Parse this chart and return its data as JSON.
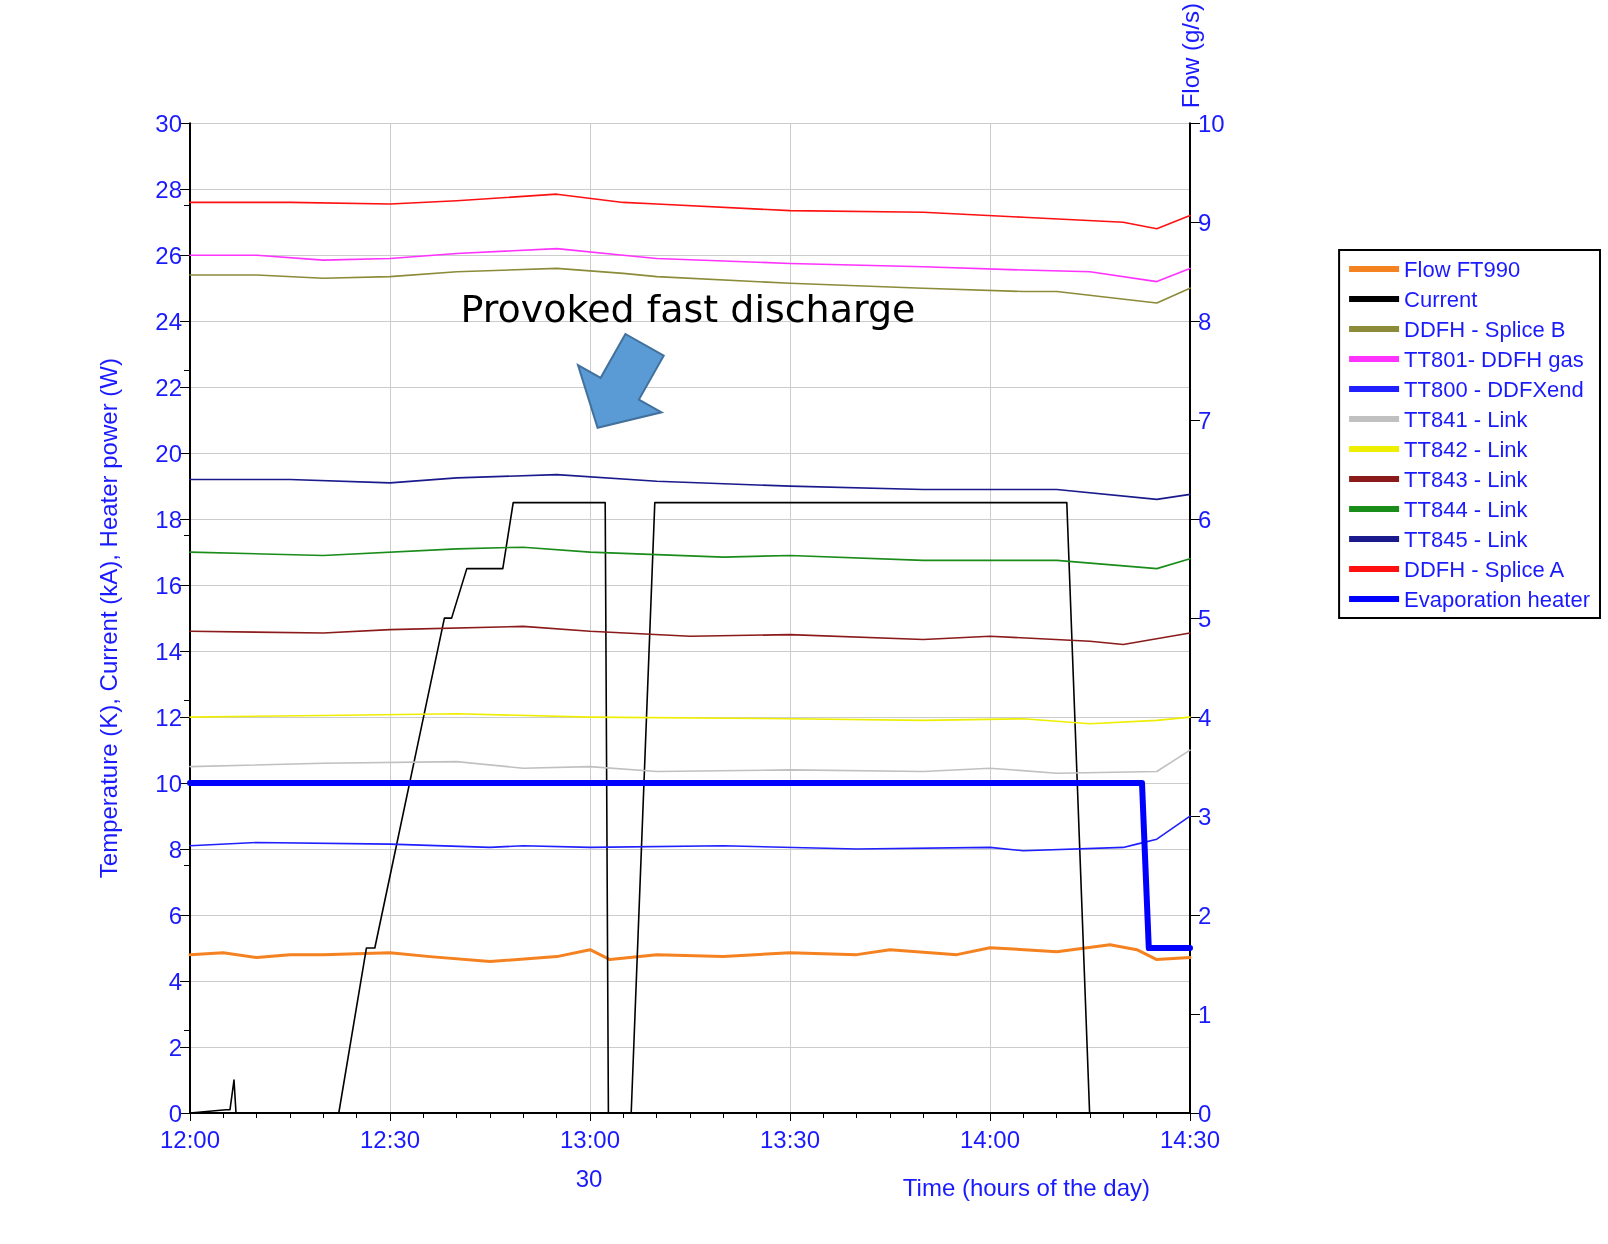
{
  "chart_data": {
    "type": "line",
    "ylabel": "Temperature (K), Current (kA), Heater power (W)",
    "y2label": "Flow (g/s)",
    "xlabel": "Time (hours of the day)",
    "annotations": [
      "Provoked fast discharge",
      "30"
    ],
    "xlim": [
      12,
      14.5
    ],
    "xticks": [
      {
        "value": 12,
        "label": "12:00"
      },
      {
        "value": 12.5,
        "label": "12:30"
      },
      {
        "value": 13,
        "label": "13:00"
      },
      {
        "value": 13.5,
        "label": "13:30"
      },
      {
        "value": 14,
        "label": "14:00"
      },
      {
        "value": 14.5,
        "label": "14:30"
      }
    ],
    "ylim": [
      0,
      30
    ],
    "yticks": [
      0,
      2,
      4,
      6,
      8,
      10,
      12,
      14,
      16,
      18,
      20,
      22,
      24,
      26,
      28,
      30
    ],
    "y2lim": [
      0,
      10
    ],
    "y2ticks": [
      0,
      1,
      2,
      3,
      4,
      5,
      6,
      7,
      8,
      9,
      10
    ],
    "grid": true,
    "legend": "right",
    "marker": "none",
    "line_style": "solid",
    "series": [
      {
        "name": "Flow FT990",
        "color": "#f58220",
        "axis": "y2",
        "x": [
          12,
          12.083,
          12.167,
          12.25,
          12.333,
          12.5,
          12.6,
          12.75,
          12.917,
          13,
          13.05,
          13.167,
          13.333,
          13.5,
          13.667,
          13.75,
          13.917,
          14,
          14.167,
          14.3,
          14.367,
          14.417,
          14.5
        ],
        "values": [
          1.6,
          1.62,
          1.57,
          1.6,
          1.6,
          1.62,
          1.58,
          1.53,
          1.58,
          1.65,
          1.55,
          1.6,
          1.58,
          1.62,
          1.6,
          1.65,
          1.6,
          1.67,
          1.63,
          1.7,
          1.65,
          1.55,
          1.57
        ]
      },
      {
        "name": "Current",
        "color": "#000000",
        "x": [
          12,
          12.09,
          12.1,
          12.11,
          12.115,
          12.372,
          12.441,
          12.462,
          12.636,
          12.654,
          12.692,
          12.782,
          12.808,
          13.038,
          13.046,
          13.103,
          13.162,
          14.192,
          14.249,
          14.333
        ],
        "values": [
          0,
          0.1,
          0.1,
          1,
          0,
          0,
          5,
          5,
          15,
          15,
          16.5,
          16.5,
          18.5,
          18.5,
          0,
          0,
          18.5,
          18.5,
          0,
          0
        ]
      },
      {
        "name": "DDFH - Splice B",
        "color": "#8b8b3a",
        "x": [
          12,
          12.167,
          12.333,
          12.5,
          12.667,
          12.917,
          13.083,
          13.167,
          13.5,
          13.833,
          14.083,
          14.167,
          14.417,
          14.5
        ],
        "values": [
          25.4,
          25.4,
          25.3,
          25.35,
          25.5,
          25.6,
          25.45,
          25.35,
          25.15,
          25.0,
          24.9,
          24.9,
          24.55,
          25.0
        ]
      },
      {
        "name": "TT801- DDFH gas",
        "color": "#ff33ff",
        "x": [
          12,
          12.167,
          12.333,
          12.5,
          12.667,
          12.917,
          13.083,
          13.167,
          13.5,
          13.833,
          14.083,
          14.25,
          14.417,
          14.5
        ],
        "values": [
          26.0,
          26.0,
          25.85,
          25.9,
          26.05,
          26.2,
          26.0,
          25.9,
          25.75,
          25.65,
          25.55,
          25.5,
          25.2,
          25.6
        ]
      },
      {
        "name": "TT800 - DDFXend",
        "color": "#1f1fff",
        "x": [
          12,
          12.167,
          12.5,
          12.75,
          12.833,
          13,
          13.333,
          13.667,
          14,
          14.083,
          14.333,
          14.367,
          14.417,
          14.5
        ],
        "values": [
          8.1,
          8.2,
          8.15,
          8.05,
          8.1,
          8.05,
          8.1,
          8.0,
          8.05,
          7.95,
          8.05,
          8.15,
          8.3,
          9.0
        ]
      },
      {
        "name": "TT841 - Link",
        "color": "#c0c0c0",
        "x": [
          12,
          12.333,
          12.667,
          12.833,
          13,
          13.167,
          13.5,
          13.833,
          14,
          14.167,
          14.417,
          14.5
        ],
        "values": [
          10.5,
          10.6,
          10.65,
          10.45,
          10.5,
          10.35,
          10.4,
          10.35,
          10.45,
          10.3,
          10.35,
          11.0
        ]
      },
      {
        "name": "TT842 - Link",
        "color": "#eeee00",
        "x": [
          12,
          12.333,
          12.667,
          13,
          13.5,
          13.833,
          14.083,
          14.25,
          14.417,
          14.5
        ],
        "values": [
          12.0,
          12.05,
          12.1,
          12.0,
          11.95,
          11.9,
          11.95,
          11.8,
          11.9,
          12.0
        ]
      },
      {
        "name": "TT843 - Link",
        "color": "#8b1a1a",
        "x": [
          12,
          12.333,
          12.5,
          12.833,
          13,
          13.25,
          13.5,
          13.833,
          14,
          14.25,
          14.333,
          14.5
        ],
        "values": [
          14.6,
          14.55,
          14.65,
          14.75,
          14.6,
          14.45,
          14.5,
          14.35,
          14.45,
          14.3,
          14.2,
          14.55
        ]
      },
      {
        "name": "TT844 - Link",
        "color": "#1a8c1a",
        "x": [
          12,
          12.333,
          12.667,
          12.833,
          13,
          13.333,
          13.5,
          13.833,
          14.167,
          14.417,
          14.5
        ],
        "values": [
          17.0,
          16.9,
          17.1,
          17.15,
          17.0,
          16.85,
          16.9,
          16.75,
          16.75,
          16.5,
          16.8
        ]
      },
      {
        "name": "TT845 - Link",
        "color": "#1a1a8c",
        "x": [
          12,
          12.25,
          12.5,
          12.667,
          12.917,
          13.167,
          13.5,
          13.833,
          14.167,
          14.417,
          14.5
        ],
        "values": [
          19.2,
          19.2,
          19.1,
          19.25,
          19.35,
          19.15,
          19.0,
          18.9,
          18.9,
          18.6,
          18.75
        ]
      },
      {
        "name": "DDFH - Splice A",
        "color": "#ff1010",
        "x": [
          12,
          12.25,
          12.5,
          12.667,
          12.917,
          13.083,
          13.167,
          13.5,
          13.833,
          14.083,
          14.333,
          14.417,
          14.5
        ],
        "values": [
          27.6,
          27.6,
          27.55,
          27.65,
          27.85,
          27.6,
          27.55,
          27.35,
          27.3,
          27.15,
          27.0,
          26.8,
          27.2
        ]
      },
      {
        "name": "Evaporation heater",
        "color": "#0000ff",
        "x": [
          12,
          14.38,
          14.397,
          14.5
        ],
        "values": [
          10,
          10,
          5,
          5
        ]
      }
    ]
  }
}
